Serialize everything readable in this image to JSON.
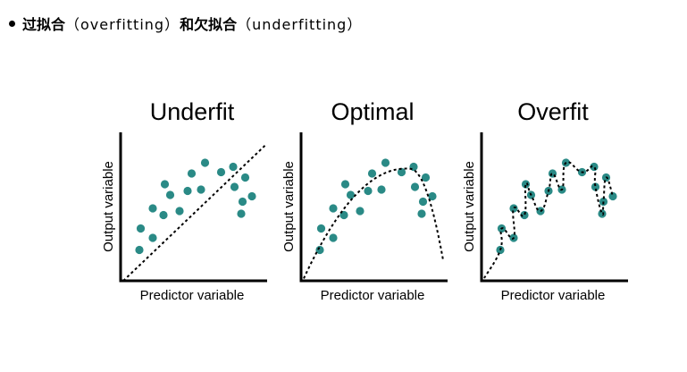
{
  "heading": {
    "term1": "过拟合",
    "term1_en": "（overfitting）",
    "conj": "和",
    "term2": "欠拟合",
    "term2_en": "（underfitting）"
  },
  "panels": [
    {
      "title": "Underfit",
      "xlabel": "Predictor variable",
      "ylabel": "Output variable"
    },
    {
      "title": "Optimal",
      "xlabel": "Predictor variable",
      "ylabel": "Output variable"
    },
    {
      "title": "Overfit",
      "xlabel": "Predictor variable",
      "ylabel": "Output variable"
    }
  ],
  "chart_data": {
    "type": "scatter",
    "points": [
      [
        0.1,
        0.19
      ],
      [
        0.11,
        0.35
      ],
      [
        0.2,
        0.28
      ],
      [
        0.2,
        0.5
      ],
      [
        0.28,
        0.45
      ],
      [
        0.29,
        0.68
      ],
      [
        0.33,
        0.6
      ],
      [
        0.4,
        0.48
      ],
      [
        0.46,
        0.63
      ],
      [
        0.49,
        0.76
      ],
      [
        0.56,
        0.64
      ],
      [
        0.59,
        0.84
      ],
      [
        0.71,
        0.77
      ],
      [
        0.8,
        0.81
      ],
      [
        0.81,
        0.66
      ],
      [
        0.86,
        0.46
      ],
      [
        0.87,
        0.55
      ],
      [
        0.89,
        0.73
      ],
      [
        0.94,
        0.59
      ]
    ],
    "fits": [
      "linear",
      "smooth",
      "interpolating"
    ]
  },
  "colors": {
    "point": "#2a8a86",
    "curve": "#000000"
  }
}
